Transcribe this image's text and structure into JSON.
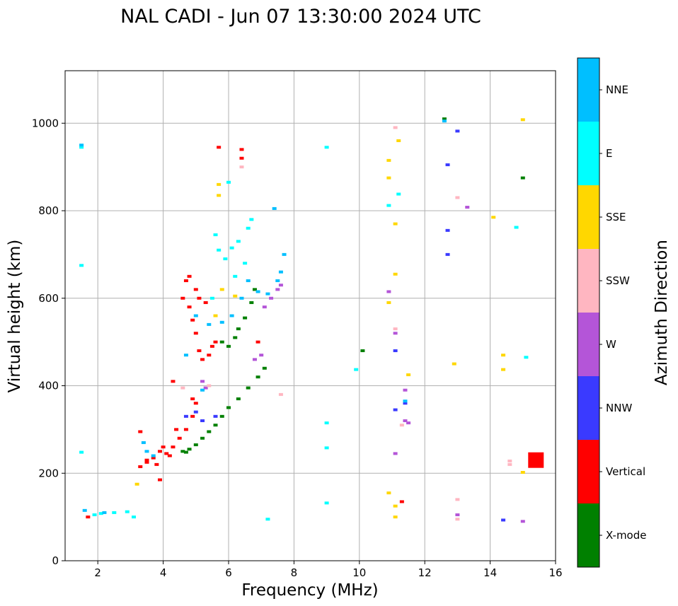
{
  "chart_data": {
    "type": "scatter",
    "title": "NAL CADI - Jun 07 13:30:00 2024 UTC",
    "xlabel": "Frequency (MHz)",
    "ylabel": "Virtual height (km)",
    "xlim": [
      1,
      16
    ],
    "ylim": [
      0,
      1120
    ],
    "xticks": [
      2,
      4,
      6,
      8,
      10,
      12,
      14,
      16
    ],
    "yticks": [
      0,
      200,
      400,
      600,
      800,
      1000
    ],
    "grid": true,
    "colorbar": {
      "label": "Azimuth Direction",
      "categories": [
        {
          "name": "X-mode",
          "color": "#008000"
        },
        {
          "name": "Vertical",
          "color": "#ff0000"
        },
        {
          "name": "NNW",
          "color": "#3a3aff"
        },
        {
          "name": "W",
          "color": "#b455d8"
        },
        {
          "name": "SSW",
          "color": "#ffb6c1"
        },
        {
          "name": "SSE",
          "color": "#ffd700"
        },
        {
          "name": "E",
          "color": "#00ffff"
        },
        {
          "name": "NNE",
          "color": "#00bfff"
        }
      ]
    },
    "series": [
      {
        "name": "Vertical",
        "points": [
          [
            3.3,
            215
          ],
          [
            3.5,
            225
          ],
          [
            3.7,
            235
          ],
          [
            3.9,
            250
          ],
          [
            4.1,
            245
          ],
          [
            4.3,
            260
          ],
          [
            4.5,
            280
          ],
          [
            4.7,
            300
          ],
          [
            4.9,
            330
          ],
          [
            5.0,
            360
          ],
          [
            4.6,
            600
          ],
          [
            4.8,
            580
          ],
          [
            4.9,
            550
          ],
          [
            5.0,
            520
          ],
          [
            5.1,
            480
          ],
          [
            5.2,
            460
          ],
          [
            5.4,
            470
          ],
          [
            5.5,
            490
          ],
          [
            5.6,
            500
          ],
          [
            4.7,
            640
          ],
          [
            4.8,
            650
          ],
          [
            5.0,
            620
          ],
          [
            5.1,
            600
          ],
          [
            5.3,
            590
          ],
          [
            3.5,
            230
          ],
          [
            3.8,
            220
          ],
          [
            4.0,
            260
          ],
          [
            4.2,
            240
          ],
          [
            4.4,
            300
          ],
          [
            4.9,
            370
          ],
          [
            1.7,
            100
          ],
          [
            3.3,
            295
          ],
          [
            3.9,
            185
          ],
          [
            4.3,
            410
          ],
          [
            5.7,
            945
          ],
          [
            6.4,
            940
          ],
          [
            6.4,
            920
          ],
          [
            6.9,
            500
          ],
          [
            11.3,
            135
          ],
          [
            15.4,
            230
          ]
        ]
      },
      {
        "name": "X-mode",
        "points": [
          [
            4.6,
            250
          ],
          [
            4.8,
            255
          ],
          [
            5.0,
            265
          ],
          [
            5.2,
            280
          ],
          [
            5.4,
            295
          ],
          [
            5.6,
            310
          ],
          [
            5.8,
            330
          ],
          [
            6.0,
            350
          ],
          [
            6.3,
            370
          ],
          [
            6.6,
            395
          ],
          [
            6.9,
            420
          ],
          [
            7.1,
            440
          ],
          [
            5.8,
            500
          ],
          [
            6.0,
            490
          ],
          [
            6.2,
            510
          ],
          [
            6.3,
            530
          ],
          [
            6.5,
            555
          ],
          [
            6.7,
            590
          ],
          [
            6.8,
            620
          ],
          [
            12.6,
            1010
          ],
          [
            10.1,
            480
          ],
          [
            15.0,
            875
          ],
          [
            4.7,
            248
          ]
        ]
      },
      {
        "name": "NNW",
        "points": [
          [
            5.0,
            340
          ],
          [
            5.2,
            320
          ],
          [
            5.6,
            330
          ],
          [
            4.7,
            330
          ],
          [
            11.1,
            345
          ],
          [
            11.1,
            480
          ],
          [
            12.7,
            905
          ],
          [
            12.7,
            755
          ],
          [
            12.7,
            700
          ],
          [
            13.0,
            982
          ],
          [
            14.4,
            93
          ],
          [
            11.4,
            360
          ]
        ]
      },
      {
        "name": "W",
        "points": [
          [
            6.8,
            460
          ],
          [
            7.0,
            470
          ],
          [
            7.1,
            580
          ],
          [
            7.3,
            600
          ],
          [
            7.5,
            620
          ],
          [
            7.6,
            630
          ],
          [
            5.3,
            395
          ],
          [
            5.2,
            410
          ],
          [
            11.1,
            245
          ],
          [
            11.4,
            390
          ],
          [
            11.4,
            320
          ],
          [
            11.5,
            315
          ],
          [
            13.3,
            808
          ],
          [
            15.0,
            90
          ],
          [
            13.0,
            105
          ],
          [
            10.9,
            615
          ],
          [
            11.1,
            520
          ]
        ]
      },
      {
        "name": "SSW",
        "points": [
          [
            4.6,
            395
          ],
          [
            5.4,
            400
          ],
          [
            7.6,
            380
          ],
          [
            11.1,
            530
          ],
          [
            11.1,
            990
          ],
          [
            13.0,
            830
          ],
          [
            13.0,
            140
          ],
          [
            13.0,
            95
          ],
          [
            14.6,
            228
          ],
          [
            14.6,
            220
          ],
          [
            6.4,
            900
          ],
          [
            11.3,
            310
          ]
        ]
      },
      {
        "name": "SSE",
        "points": [
          [
            5.7,
            860
          ],
          [
            5.7,
            835
          ],
          [
            5.8,
            620
          ],
          [
            5.6,
            560
          ],
          [
            3.2,
            175
          ],
          [
            10.9,
            915
          ],
          [
            10.9,
            875
          ],
          [
            10.9,
            590
          ],
          [
            10.9,
            155
          ],
          [
            11.1,
            770
          ],
          [
            11.1,
            655
          ],
          [
            11.2,
            960
          ],
          [
            11.5,
            425
          ],
          [
            12.9,
            450
          ],
          [
            14.1,
            785
          ],
          [
            14.4,
            470
          ],
          [
            14.4,
            437
          ],
          [
            15.0,
            1008
          ],
          [
            15.0,
            202
          ],
          [
            11.1,
            125
          ],
          [
            11.1,
            100
          ],
          [
            6.2,
            605
          ]
        ]
      },
      {
        "name": "E",
        "points": [
          [
            1.5,
            945
          ],
          [
            1.5,
            675
          ],
          [
            1.5,
            248
          ],
          [
            1.9,
            105
          ],
          [
            2.1,
            108
          ],
          [
            2.5,
            110
          ],
          [
            2.9,
            112
          ],
          [
            3.1,
            100
          ],
          [
            5.5,
            600
          ],
          [
            5.7,
            710
          ],
          [
            5.9,
            690
          ],
          [
            6.1,
            715
          ],
          [
            6.3,
            730
          ],
          [
            6.6,
            760
          ],
          [
            6.7,
            780
          ],
          [
            6.5,
            680
          ],
          [
            6.2,
            650
          ],
          [
            9.0,
            945
          ],
          [
            9.0,
            315
          ],
          [
            9.0,
            258
          ],
          [
            9.0,
            132
          ],
          [
            9.9,
            437
          ],
          [
            10.9,
            812
          ],
          [
            11.2,
            838
          ],
          [
            14.8,
            762
          ],
          [
            15.1,
            465
          ],
          [
            7.2,
            95
          ],
          [
            5.6,
            745
          ],
          [
            6.0,
            865
          ]
        ]
      },
      {
        "name": "NNE",
        "points": [
          [
            1.5,
            950
          ],
          [
            7.4,
            805
          ],
          [
            7.7,
            700
          ],
          [
            7.6,
            660
          ],
          [
            7.5,
            640
          ],
          [
            7.2,
            610
          ],
          [
            6.9,
            615
          ],
          [
            6.4,
            600
          ],
          [
            6.1,
            560
          ],
          [
            5.8,
            545
          ],
          [
            5.4,
            540
          ],
          [
            5.0,
            560
          ],
          [
            4.7,
            470
          ],
          [
            5.2,
            390
          ],
          [
            3.5,
            250
          ],
          [
            3.7,
            240
          ],
          [
            3.4,
            270
          ],
          [
            2.2,
            110
          ],
          [
            1.6,
            115
          ],
          [
            12.6,
            1005
          ],
          [
            11.4,
            365
          ],
          [
            6.6,
            640
          ]
        ]
      }
    ]
  }
}
